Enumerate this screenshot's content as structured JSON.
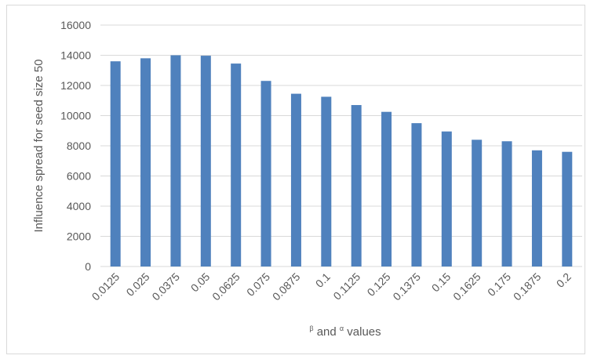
{
  "chart_data": {
    "type": "bar",
    "title": "",
    "xlabel_parts": {
      "sup1": "β",
      "mid": " and ",
      "sup2": "α",
      "end": " values"
    },
    "ylabel": "Influence spread for seed size 50",
    "categories": [
      "0.0125",
      "0.025",
      "0.0375",
      "0.05",
      "0.0625",
      "0.075",
      "0.0875",
      "0.1",
      "0.1125",
      "0.125",
      "0.1375",
      "0.15",
      "0.1625",
      "0.175",
      "0.1875",
      "0.2"
    ],
    "values": [
      13600,
      13800,
      14000,
      13970,
      13450,
      12300,
      11450,
      11250,
      10700,
      10250,
      9500,
      8950,
      8400,
      8300,
      7700,
      7600
    ],
    "ylim": [
      0,
      16000
    ],
    "yticks": [
      "0",
      "2000",
      "4000",
      "6000",
      "8000",
      "10000",
      "12000",
      "14000",
      "16000"
    ],
    "bar_color": "#4f81bd",
    "grid_color": "#d9d9d9",
    "grid": true,
    "legend": "none"
  }
}
